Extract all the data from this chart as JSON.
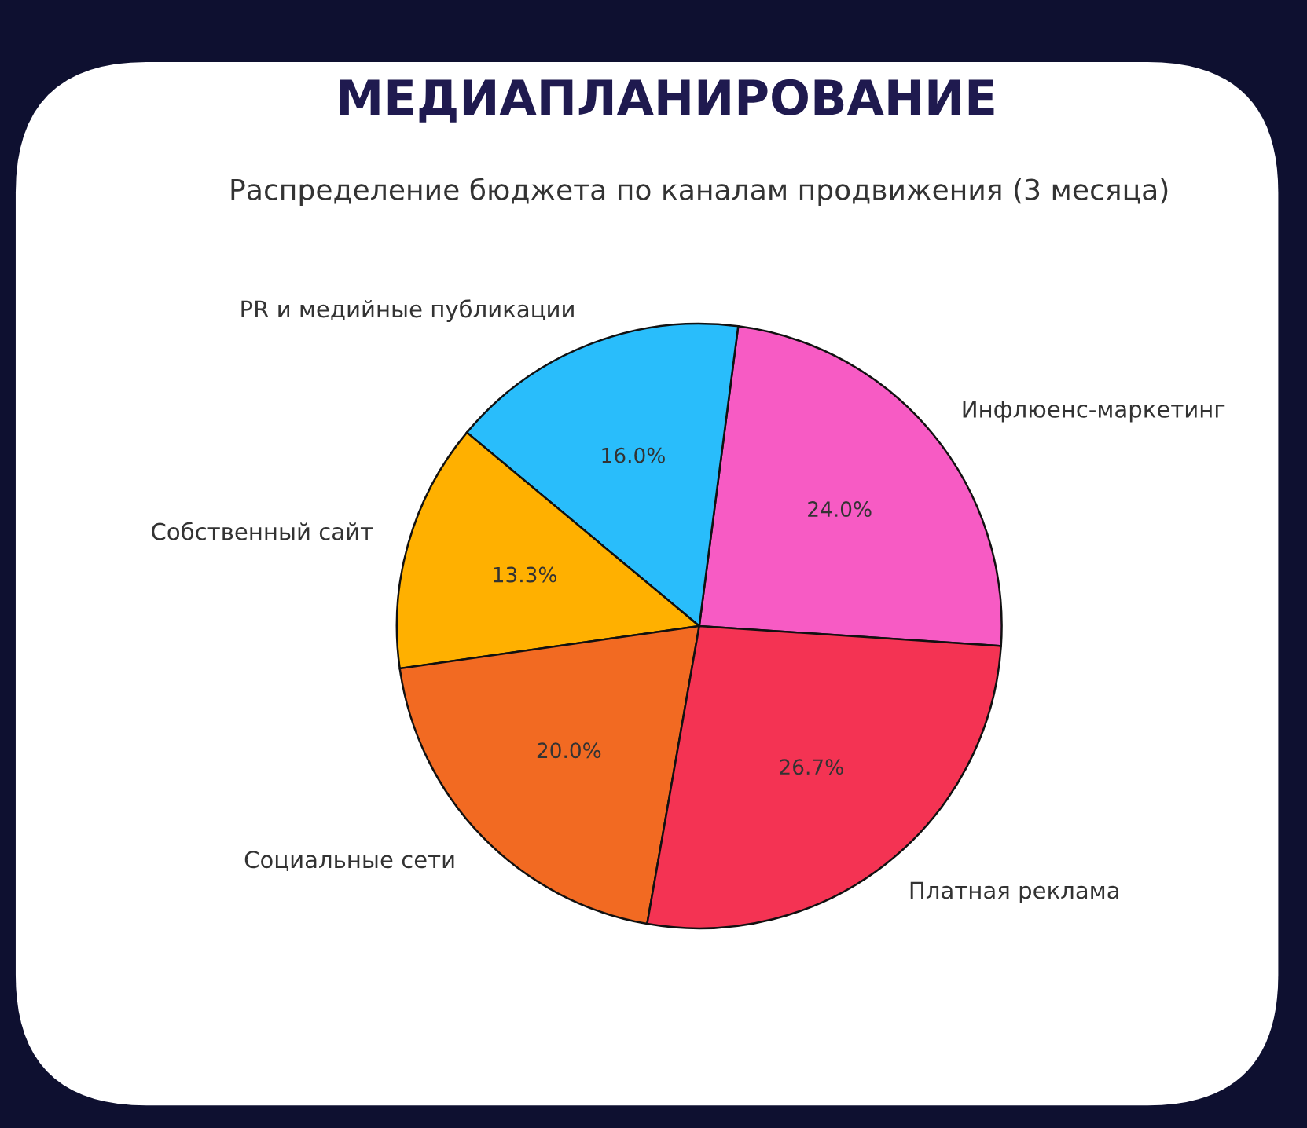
{
  "chart_data": {
    "type": "pie",
    "title": "МЕДИАПЛАНИРОВАНИЕ",
    "subtitle": "Распределение бюджета по каналам продвижения (3 месяца)",
    "categories": [
      "Инфлюенс-маркетинг",
      "PR и медийные публикации",
      "Собственный сайт",
      "Социальные сети",
      "Платная реклама"
    ],
    "values": [
      24.0,
      16.0,
      13.3,
      20.0,
      26.7
    ],
    "colors": [
      "#f75bc4",
      "#29bdfb",
      "#ffb000",
      "#f26a22",
      "#f43353"
    ],
    "value_labels": [
      "24.0%",
      "16.0%",
      "13.3%",
      "20.0%",
      "26.7%"
    ]
  }
}
